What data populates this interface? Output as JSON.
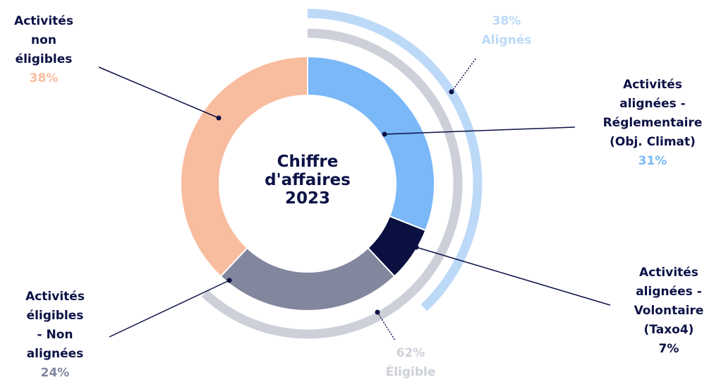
{
  "chart_data": {
    "type": "pie",
    "donut": true,
    "title": "Chiffre\nd'affaires\n2023",
    "categories": [
      "Activités\nalignées -\nRéglementaire\n(Obj. Climat)",
      "Activités\nalignées -\nVolontaire\n(Taxo4)",
      "Activités\néligibles\n- Non\nalignées",
      "Activités\nnon\néligibles"
    ],
    "values": [
      31,
      7,
      24,
      38
    ],
    "value_labels": [
      "31%",
      "7%",
      "24%",
      "38%"
    ],
    "colors": [
      "#7ab8f8",
      "#0a1040",
      "#82879e",
      "#f8bc9e"
    ],
    "label_colors": [
      "#7ab8f8",
      "#0a1040",
      "#82879e",
      "#f8bc9e"
    ],
    "rings": [
      {
        "name": "Alignés",
        "value": 38,
        "value_label": "38%",
        "color": "#bcd9f8"
      },
      {
        "name": "Éligible",
        "value": 62,
        "value_label": "62%",
        "color": "#cdd0d9"
      }
    ]
  }
}
